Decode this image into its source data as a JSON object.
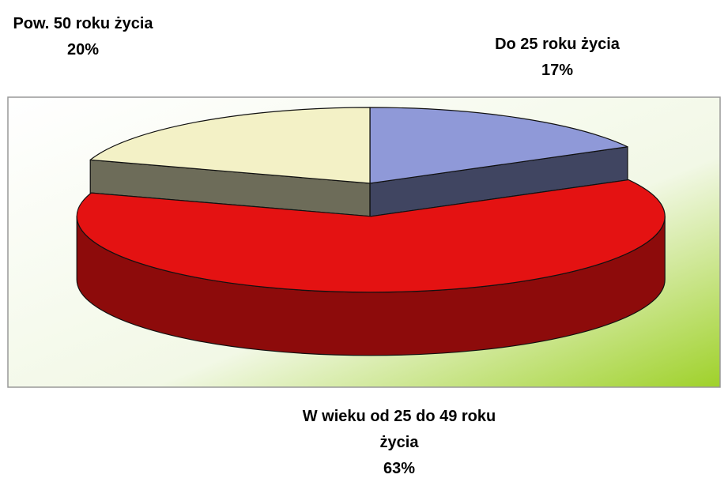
{
  "chart_data": {
    "type": "pie3d",
    "categories": [
      "Do 25 roku życia",
      "W wieku od 25 do 49 roku życia",
      "Pow. 50 roku życia"
    ],
    "values": [
      17,
      63,
      20
    ],
    "value_labels": [
      "17%",
      "63%",
      "20%"
    ],
    "colors": [
      "#8f99d8",
      "#e41212",
      "#f3f1c6"
    ]
  }
}
